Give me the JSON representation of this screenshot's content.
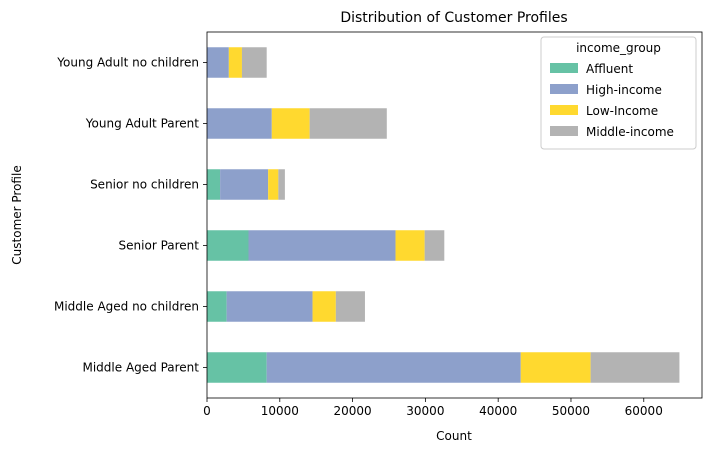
{
  "chart_data": {
    "type": "bar",
    "orientation": "horizontal",
    "stacked": true,
    "title": "Distribution of Customer Profiles",
    "xlabel": "Count",
    "ylabel": "Customer Profile",
    "xlim": [
      0,
      68000
    ],
    "xticks": [
      0,
      10000,
      20000,
      30000,
      40000,
      50000,
      60000
    ],
    "xtick_labels": [
      "0",
      "10000",
      "20000",
      "30000",
      "40000",
      "50000",
      "60000"
    ],
    "categories": [
      "Middle Aged Parent",
      "Middle Aged no children",
      "Senior Parent",
      "Senior no children",
      "Young Adult Parent",
      "Young Adult no children"
    ],
    "series": [
      {
        "name": "Affluent",
        "color": "#66c2a5",
        "values": [
          8200,
          2700,
          5700,
          1800,
          0,
          0
        ]
      },
      {
        "name": "High-income",
        "color": "#8da0cb",
        "values": [
          34900,
          11800,
          20200,
          6600,
          8900,
          3000
        ]
      },
      {
        "name": "Low-Income",
        "color": "#ffd92f",
        "values": [
          9600,
          3200,
          4000,
          1400,
          5200,
          1800
        ]
      },
      {
        "name": "Middle-income",
        "color": "#b3b3b3",
        "values": [
          12200,
          4000,
          2700,
          900,
          10600,
          3400
        ]
      }
    ],
    "legend": {
      "title": "income_group",
      "placement": "upper right"
    },
    "grid": false
  }
}
